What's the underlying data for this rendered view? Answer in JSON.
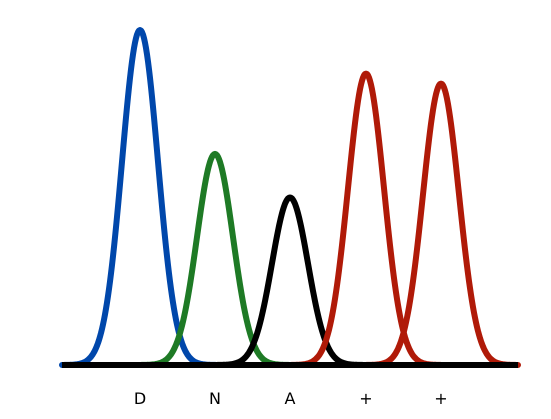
{
  "chart_data": {
    "type": "line",
    "title": "",
    "xlabel": "",
    "ylabel": "",
    "grid": false,
    "legend": "none",
    "categories": [
      "D",
      "N",
      "A",
      "+",
      "+"
    ],
    "series": [
      {
        "label": "D",
        "peak_height": 1.0,
        "width": 1.0,
        "color": "#0047ab"
      },
      {
        "label": "N",
        "peak_height": 0.63,
        "width": 1.0,
        "color": "#1e7a25"
      },
      {
        "label": "A",
        "peak_height": 0.5,
        "width": 1.0,
        "color": "#000000"
      },
      {
        "label": "+",
        "peak_height": 0.87,
        "width": 1.0,
        "color": "#b01a08"
      },
      {
        "label": "+",
        "peak_height": 0.84,
        "width": 1.0,
        "color": "#b01a08"
      }
    ],
    "baseline_color": "#000000"
  }
}
